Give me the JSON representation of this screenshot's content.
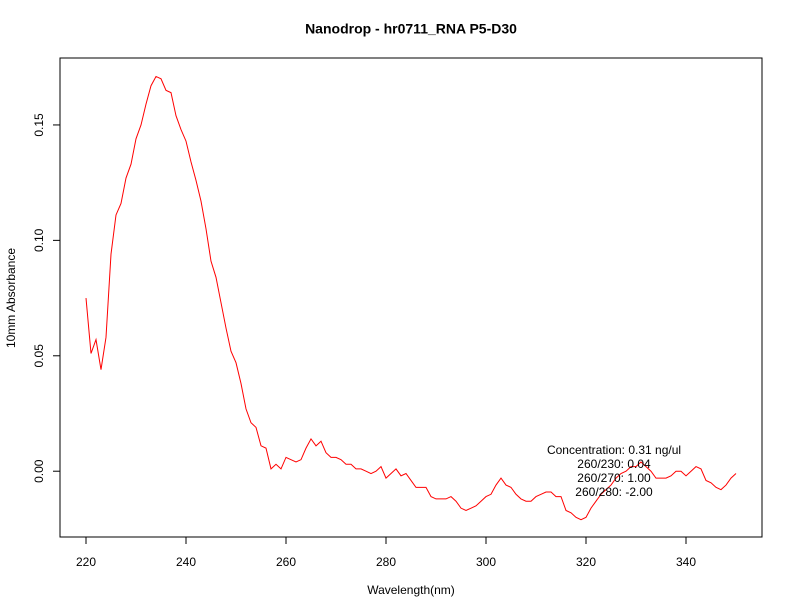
{
  "chart_data": {
    "type": "line",
    "title": "Nanodrop - hr0711_RNA P5-D30",
    "x_label": "Wavelength(nm)",
    "y_label": "10mm Absorbance",
    "x": [
      220,
      221,
      222,
      223,
      224,
      225,
      226,
      227,
      228,
      229,
      230,
      231,
      232,
      233,
      234,
      235,
      236,
      237,
      238,
      239,
      240,
      241,
      242,
      243,
      244,
      245,
      246,
      247,
      248,
      249,
      250,
      251,
      252,
      253,
      254,
      255,
      256,
      257,
      258,
      259,
      260,
      261,
      262,
      263,
      264,
      265,
      266,
      267,
      268,
      269,
      270,
      271,
      272,
      273,
      274,
      275,
      276,
      277,
      278,
      279,
      280,
      281,
      282,
      283,
      284,
      285,
      286,
      287,
      288,
      289,
      290,
      291,
      292,
      293,
      294,
      295,
      296,
      297,
      298,
      299,
      300,
      301,
      302,
      303,
      304,
      305,
      306,
      307,
      308,
      309,
      310,
      311,
      312,
      313,
      314,
      315,
      316,
      317,
      318,
      319,
      320,
      321,
      322,
      323,
      324,
      325,
      326,
      327,
      328,
      329,
      330,
      331,
      332,
      333,
      334,
      335,
      336,
      337,
      338,
      339,
      340,
      341,
      342,
      343,
      344,
      345,
      346,
      347,
      348,
      349,
      350
    ],
    "series": [
      {
        "color": "#ff0000",
        "values": [
          0.075,
          0.051,
          0.057,
          0.044,
          0.058,
          0.094,
          0.111,
          0.116,
          0.127,
          0.133,
          0.144,
          0.15,
          0.159,
          0.167,
          0.171,
          0.17,
          0.165,
          0.164,
          0.154,
          0.148,
          0.143,
          0.134,
          0.126,
          0.117,
          0.105,
          0.091,
          0.084,
          0.073,
          0.062,
          0.052,
          0.047,
          0.038,
          0.027,
          0.021,
          0.019,
          0.011,
          0.01,
          0.001,
          0.003,
          0.001,
          0.006,
          0.005,
          0.004,
          0.005,
          0.01,
          0.014,
          0.011,
          0.013,
          0.008,
          0.006,
          0.006,
          0.005,
          0.003,
          0.003,
          0.001,
          0.001,
          0.0,
          -0.001,
          0.0,
          0.002,
          -0.003,
          -0.001,
          0.001,
          -0.002,
          -0.001,
          -0.004,
          -0.007,
          -0.007,
          -0.007,
          -0.011,
          -0.012,
          -0.012,
          -0.012,
          -0.011,
          -0.013,
          -0.016,
          -0.017,
          -0.016,
          -0.015,
          -0.013,
          -0.011,
          -0.01,
          -0.006,
          -0.003,
          -0.006,
          -0.007,
          -0.01,
          -0.012,
          -0.013,
          -0.013,
          -0.011,
          -0.01,
          -0.009,
          -0.009,
          -0.011,
          -0.011,
          -0.017,
          -0.018,
          -0.02,
          -0.021,
          -0.02,
          -0.016,
          -0.013,
          -0.01,
          -0.008,
          -0.006,
          -0.003,
          -0.001,
          0.0,
          0.002,
          0.002,
          0.004,
          0.002,
          0.0,
          -0.003,
          -0.003,
          -0.003,
          -0.002,
          0.0,
          0.0,
          -0.002,
          0.0,
          0.002,
          0.001,
          -0.004,
          -0.005,
          -0.007,
          -0.008,
          -0.006,
          -0.003,
          -0.001
        ]
      }
    ],
    "xlim": [
      214.8,
      355.2
    ],
    "ylim": [
      -0.0285,
      0.179
    ],
    "xticks": [
      220,
      240,
      260,
      280,
      300,
      320,
      340
    ],
    "yticks": [
      {
        "value": 0,
        "label": "0.00"
      },
      {
        "value": 0.05,
        "label": "0.05"
      },
      {
        "value": 0.1,
        "label": "0.10"
      },
      {
        "value": 0.15,
        "label": "0.15"
      }
    ],
    "annotations": [
      "Concentration: 0.31 ng/ul",
      "260/230: 0.04",
      "260/270: 1.00",
      "260/280: -2.00"
    ]
  }
}
